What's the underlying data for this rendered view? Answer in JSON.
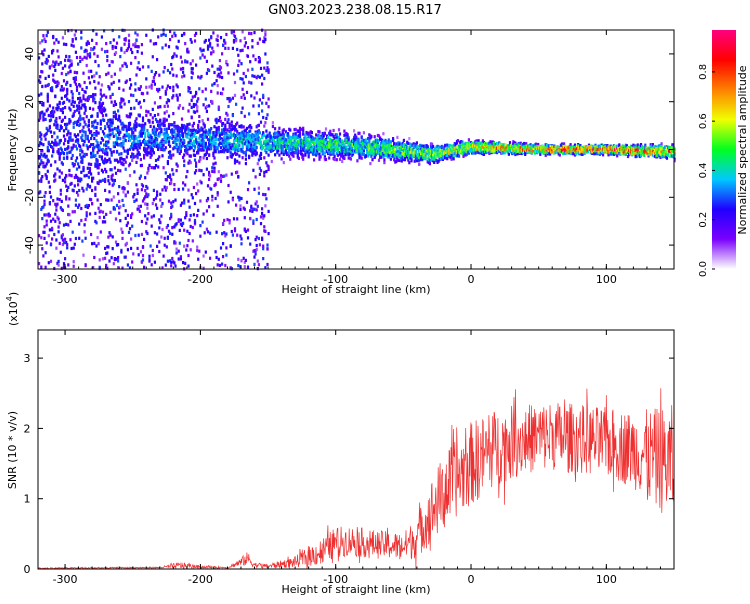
{
  "title": "GN03.2023.238.08.15.R17",
  "chart_data": [
    {
      "type": "heatmap",
      "title": "",
      "xlabel": "Height of straight line (km)",
      "ylabel": "Frequency (Hz)",
      "xlim": [
        -320,
        150
      ],
      "ylim": [
        -50,
        50
      ],
      "xticks": [
        -300,
        -200,
        -100,
        0,
        100
      ],
      "xtick_labels": [
        "-300",
        "-200",
        "-100",
        "0",
        "100"
      ],
      "yticks": [
        -40,
        -20,
        0,
        20,
        40
      ],
      "ytick_labels": [
        "-40",
        "-20",
        "0",
        "20",
        "40"
      ],
      "colorbar": {
        "label": "Normalized spectral amplitude",
        "range": [
          0,
          0.97
        ],
        "ticks": [
          0,
          0.2,
          0.4,
          0.6,
          0.8
        ],
        "tick_labels": [
          "0.0",
          "0.2",
          "0.4",
          "0.6",
          "0.8"
        ],
        "colors": [
          "#ffffff",
          "#7a00ff",
          "#2000ff",
          "#00c8ff",
          "#00ff20",
          "#f0ff00",
          "#ff8000",
          "#ff0000",
          "#ff0080"
        ]
      },
      "profile": {
        "description_points_x": [
          -320,
          -250,
          -200,
          -150,
          -100,
          -60,
          -30,
          0,
          50,
          100,
          150
        ],
        "center_freq": [
          4,
          5,
          4,
          3,
          2,
          0,
          -2,
          1,
          0,
          0,
          -1
        ],
        "band_halfwidth": [
          48,
          10,
          8,
          7,
          6,
          5,
          4,
          3,
          2,
          2,
          3
        ],
        "peak_amplitude": [
          0.25,
          0.35,
          0.4,
          0.45,
          0.5,
          0.55,
          0.6,
          0.7,
          0.85,
          0.9,
          0.8
        ]
      }
    },
    {
      "type": "line",
      "title": "",
      "xlabel": "Height of straight line (km)",
      "ylabel": "SNR (10 * v/v)",
      "yscale_label": "(x10",
      "yscale_exp": "4",
      "yscale_close": ")",
      "xlim": [
        -320,
        150
      ],
      "ylim": [
        0,
        3.4
      ],
      "xticks": [
        -300,
        -200,
        -100,
        0,
        100
      ],
      "xtick_labels": [
        "-300",
        "-200",
        "-100",
        "0",
        "100"
      ],
      "yticks": [
        0,
        1,
        2,
        3
      ],
      "ytick_labels": [
        "0",
        "1",
        "2",
        "3"
      ],
      "color": "#ee3030",
      "envelope": {
        "x": [
          -320,
          -230,
          -215,
          -200,
          -180,
          -170,
          -165,
          -160,
          -150,
          -130,
          -110,
          -100,
          -90,
          -70,
          -50,
          -40,
          -30,
          -20,
          -10,
          0,
          20,
          40,
          60,
          80,
          100,
          120,
          140,
          150
        ],
        "mean": [
          0.01,
          0.02,
          0.05,
          0.03,
          0.02,
          0.1,
          0.15,
          0.06,
          0.04,
          0.1,
          0.25,
          0.38,
          0.4,
          0.35,
          0.32,
          0.45,
          0.8,
          1.1,
          1.3,
          1.5,
          1.75,
          1.85,
          1.9,
          1.85,
          1.8,
          1.7,
          1.55,
          1.5
        ],
        "spread": [
          0.01,
          0.01,
          0.05,
          0.02,
          0.01,
          0.06,
          0.1,
          0.04,
          0.03,
          0.08,
          0.2,
          0.22,
          0.22,
          0.2,
          0.2,
          0.3,
          0.45,
          0.55,
          0.55,
          0.6,
          0.55,
          0.5,
          0.5,
          0.5,
          0.5,
          0.55,
          0.75,
          0.85
        ]
      }
    }
  ]
}
